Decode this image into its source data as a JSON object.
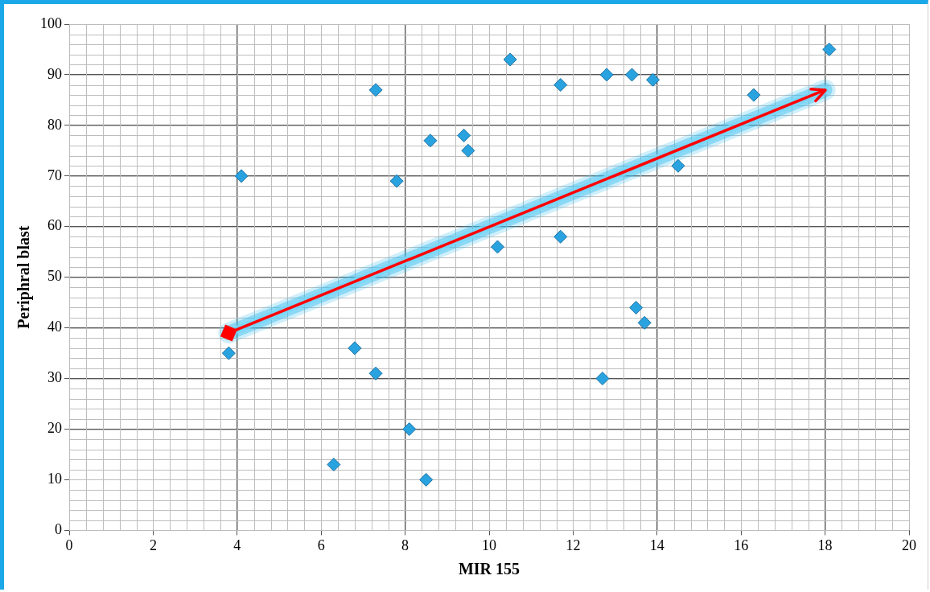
{
  "chart_data": {
    "type": "scatter",
    "xlabel": "MIR 155",
    "ylabel": "Periphral blast",
    "x": [
      3.8,
      4.1,
      6.3,
      6.8,
      7.3,
      7.3,
      7.8,
      8.1,
      8.5,
      8.6,
      9.4,
      9.5,
      10.2,
      10.5,
      11.7,
      11.7,
      12.7,
      12.8,
      13.4,
      13.5,
      13.7,
      13.9,
      14.5,
      16.3,
      18.1
    ],
    "series": [
      {
        "color": "#29a3e0",
        "values": [
          35,
          70,
          13,
          36,
          87,
          31,
          69,
          20,
          10,
          77,
          78,
          75,
          56,
          93,
          88,
          58,
          30,
          90,
          90,
          44,
          41,
          89,
          72,
          86,
          95
        ]
      },
      {
        "type": "line",
        "color": "#ff0000",
        "x": [
          3.8,
          18.0
        ],
        "values": [
          39,
          87
        ]
      }
    ],
    "xlim": [
      0,
      20
    ],
    "xticks": [
      0,
      2,
      4,
      6,
      8,
      10,
      12,
      14,
      16,
      18,
      20
    ],
    "ylim": [
      0,
      100
    ],
    "yticks": [
      0,
      10,
      20,
      30,
      40,
      50,
      60,
      70,
      80,
      90,
      100
    ],
    "grid": true,
    "marker": "diamond",
    "legend": false
  }
}
